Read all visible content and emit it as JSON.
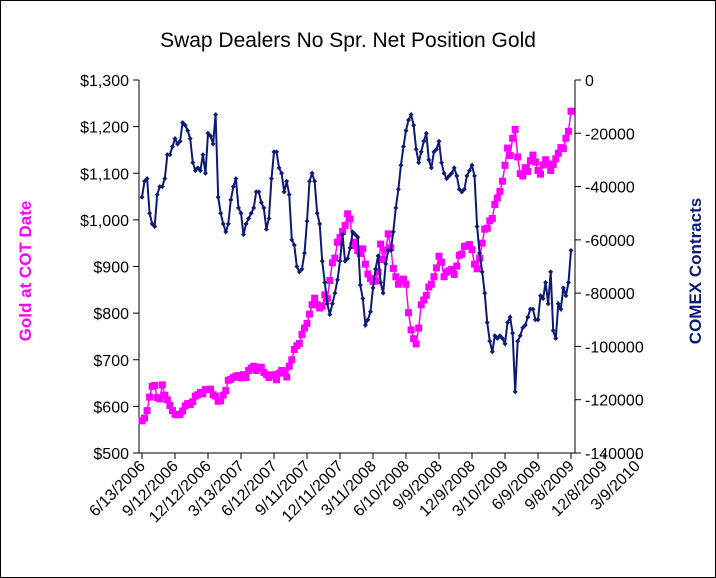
{
  "chart_data": {
    "type": "line",
    "title": "Swap Dealers No Spr. Net Position Gold",
    "xlabel": "",
    "ylabel_left": "Gold at COT Date",
    "ylabel_right": "COMEX Contracts",
    "left_axis": {
      "range": [
        500,
        1300
      ],
      "ticks": [
        500,
        600,
        700,
        800,
        900,
        1000,
        1100,
        1200,
        1300
      ],
      "tick_labels": [
        "$500",
        "$600",
        "$700",
        "$800",
        "$900",
        "$1,000",
        "$1,100",
        "$1,200",
        "$1,300"
      ]
    },
    "right_axis": {
      "range": [
        -140000,
        0
      ],
      "ticks": [
        -140000,
        -120000,
        -100000,
        -80000,
        -60000,
        -40000,
        -20000,
        0
      ],
      "tick_labels": [
        "-140000",
        "-120000",
        "-100000",
        "-80000",
        "-60000",
        "-40000",
        "-20000",
        "0"
      ]
    },
    "x_tick_labels": [
      "6/13/2006",
      "9/12/2006",
      "12/12/2006",
      "3/13/2007",
      "6/12/2007",
      "9/11/2007",
      "12/11/2007",
      "3/11/2008",
      "6/10/2008",
      "9/9/2008",
      "12/9/2008",
      "3/10/2009",
      "6/9/2009",
      "9/8/2009",
      "12/8/2009",
      "3/9/2010"
    ],
    "x_tick_step_weeks": 13,
    "grid": false,
    "legend": "none",
    "series": [
      {
        "name": "Gold at COT Date",
        "axis": "left",
        "color": "#ff00ff",
        "marker": "square",
        "values": [
          569,
          575,
          591,
          620,
          643,
          645,
          619,
          616,
          646,
          624,
          614,
          602,
          591,
          583,
          582,
          583,
          590,
          601,
          606,
          604,
          610,
          622,
          625,
          630,
          627,
          636,
          636,
          637,
          625,
          622,
          611,
          612,
          624,
          634,
          656,
          658,
          662,
          665,
          666,
          661,
          668,
          662,
          677,
          682,
          686,
          677,
          683,
          684,
          673,
          668,
          662,
          666,
          668,
          657,
          671,
          677,
          672,
          663,
          686,
          700,
          722,
          730,
          735,
          754,
          768,
          778,
          798,
          818,
          832,
          818,
          811,
          815,
          839,
          831,
          870,
          908,
          918,
          952,
          962,
          975,
          988,
          1013,
          1002,
          945,
          952,
          934,
          928,
          938,
          905,
          884,
          874,
          868,
          869,
          888,
          948,
          915,
          935,
          970,
          940,
          896,
          878,
          862,
          868,
          873,
          862,
          801,
          764,
          745,
          734,
          768,
          818,
          828,
          838,
          856,
          862,
          878,
          897,
          922,
          909,
          878,
          888,
          891,
          894,
          883,
          901,
          924,
          927,
          943,
          944,
          947,
          936,
          905,
          895,
          918,
          950,
          980,
          982,
          998,
          1003,
          1033,
          1047,
          1061,
          1083,
          1117,
          1154,
          1138,
          1175,
          1194,
          1135,
          1099,
          1094,
          1112,
          1104,
          1127,
          1139,
          1124,
          1106,
          1098,
          1118,
          1129,
          1120,
          1106,
          1119,
          1131,
          1143,
          1155,
          1153,
          1175,
          1190,
          1233
        ]
      },
      {
        "name": "COMEX Contracts",
        "axis": "right",
        "color": "#0d1a73",
        "marker": "diamond",
        "values": [
          -44000,
          -38000,
          -37000,
          -50000,
          -54000,
          -55000,
          -43000,
          -40000,
          -40000,
          -37000,
          -28000,
          -28000,
          -25000,
          -22000,
          -24000,
          -23000,
          -16000,
          -17000,
          -19000,
          -22000,
          -31000,
          -34000,
          -33000,
          -34000,
          -28000,
          -35000,
          -20000,
          -21000,
          -24000,
          -13000,
          -44000,
          -50000,
          -54000,
          -57000,
          -54000,
          -45000,
          -40000,
          -37000,
          -48000,
          -50000,
          -58000,
          -54000,
          -52000,
          -50000,
          -48000,
          -42000,
          -42000,
          -46000,
          -48000,
          -56000,
          -52000,
          -37000,
          -27000,
          -27000,
          -33000,
          -35000,
          -42000,
          -38000,
          -43000,
          -60000,
          -62000,
          -70000,
          -72000,
          -71000,
          -65000,
          -53000,
          -38000,
          -35000,
          -38000,
          -50000,
          -54000,
          -68000,
          -76000,
          -84000,
          -88000,
          -84000,
          -80000,
          -75000,
          -68000,
          -58000,
          -68000,
          -67000,
          -63000,
          -57000,
          -58000,
          -59000,
          -77000,
          -82000,
          -92000,
          -90000,
          -87000,
          -78000,
          -71000,
          -66000,
          -76000,
          -80000,
          -69000,
          -64000,
          -64000,
          -57000,
          -48000,
          -41000,
          -32000,
          -25000,
          -19000,
          -15000,
          -13000,
          -17000,
          -26000,
          -31000,
          -27000,
          -23000,
          -20000,
          -30000,
          -33000,
          -27000,
          -26000,
          -23000,
          -31000,
          -35000,
          -37000,
          -36000,
          -35000,
          -33000,
          -36000,
          -41000,
          -42000,
          -41000,
          -36000,
          -34000,
          -32000,
          -36000,
          -55000,
          -65000,
          -72000,
          -80000,
          -91000,
          -98000,
          -102000,
          -96000,
          -97000,
          -96000,
          -97000,
          -99000,
          -91000,
          -89000,
          -95000,
          -117000,
          -98000,
          -96000,
          -93000,
          -92000,
          -89000,
          -86000,
          -86000,
          -90000,
          -90000,
          -81000,
          -82000,
          -76000,
          -84000,
          -72000,
          -94000,
          -97000,
          -84000,
          -86000,
          -78000,
          -81000,
          -76000,
          -64000
        ]
      }
    ]
  }
}
